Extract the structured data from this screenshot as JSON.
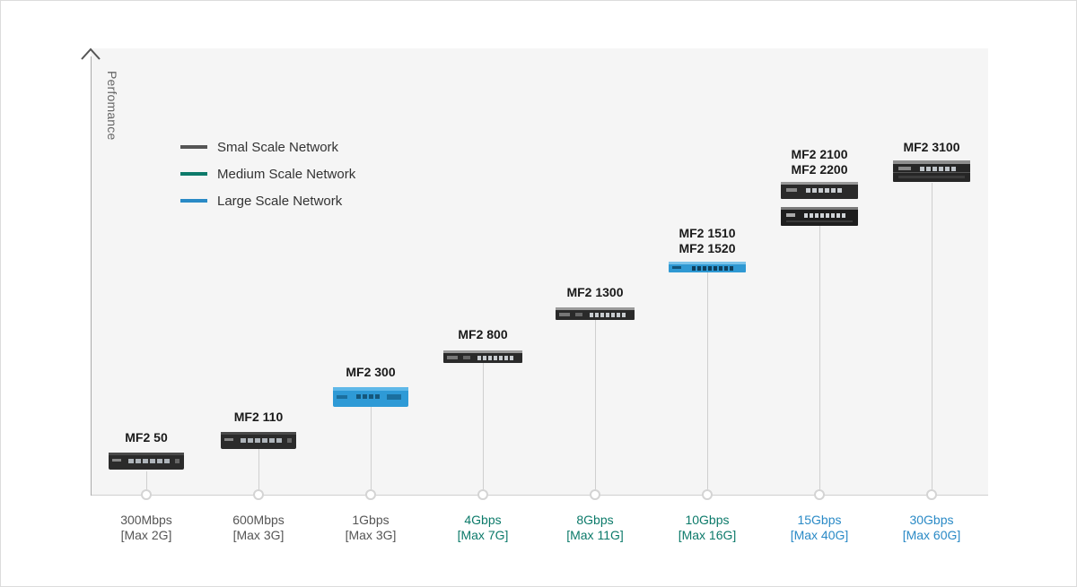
{
  "axis": {
    "y_label": "Perfomance"
  },
  "legend": [
    {
      "label": "Smal Scale Network",
      "color": "#555555"
    },
    {
      "label": "Medium Scale Network",
      "color": "#0c7a6a"
    },
    {
      "label": "Large Scale Network",
      "color": "#2a8ac6"
    }
  ],
  "scale_colors": {
    "small": "#555555",
    "medium": "#0c7a6a",
    "large": "#2a8ac6"
  },
  "products": [
    {
      "model": "MF2 50",
      "throughput": "300Mbps",
      "max": "[Max 2G]",
      "scale": "small",
      "device": "dark-small"
    },
    {
      "model": "MF2 110",
      "throughput": "600Mbps",
      "max": "[Max 3G]",
      "scale": "small",
      "device": "dark-small"
    },
    {
      "model": "MF2 300",
      "throughput": "1Gbps",
      "max": "[Max 3G]",
      "scale": "small",
      "device": "blue-box"
    },
    {
      "model": "MF2 800",
      "throughput": "4Gbps",
      "max": "[Max 7G]",
      "scale": "medium",
      "device": "rack-dark"
    },
    {
      "model": "MF2 1300",
      "throughput": "8Gbps",
      "max": "[Max 11G]",
      "scale": "medium",
      "device": "rack-dark"
    },
    {
      "model": "MF2 1510\nMF2 1520",
      "throughput": "10Gbps",
      "max": "[Max 16G]",
      "scale": "medium",
      "device": "rack-blue"
    },
    {
      "model": "MF2 2100\nMF2 2200",
      "throughput": "15Gbps",
      "max": "[Max 40G]",
      "scale": "large",
      "device": "rack-2u-pair"
    },
    {
      "model": "MF2 3100",
      "throughput": "30Gbps",
      "max": "[Max 60G]",
      "scale": "large",
      "device": "rack-2u"
    }
  ]
}
